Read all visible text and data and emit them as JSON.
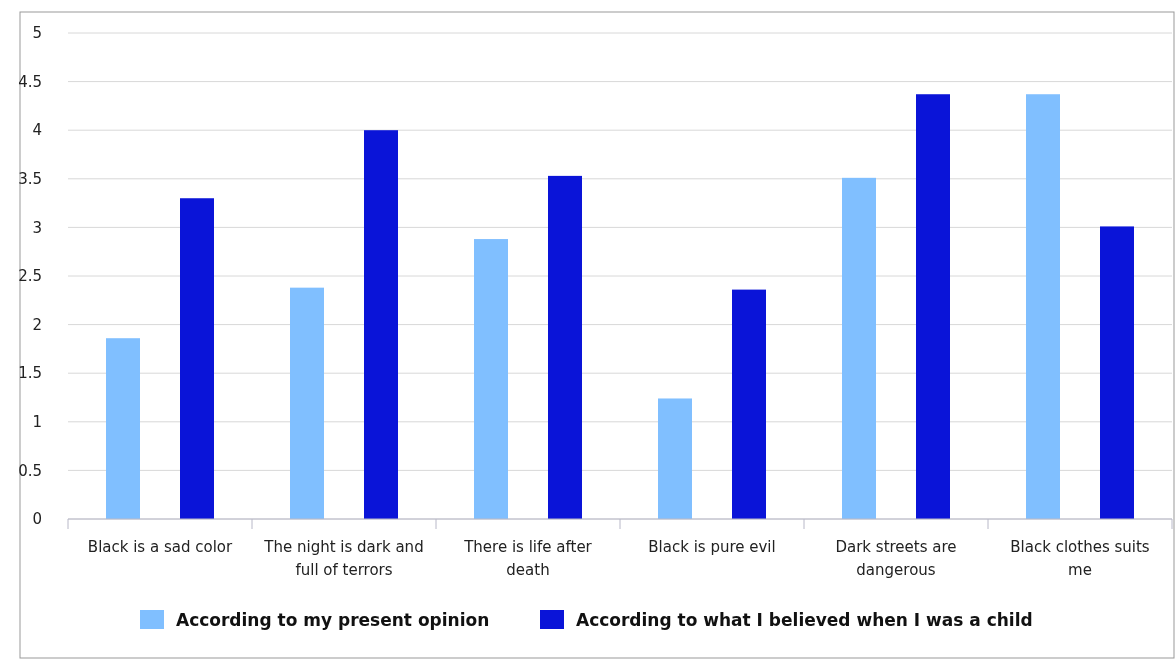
{
  "chart_data": {
    "type": "bar",
    "categories": [
      "Black is a sad color",
      "The night is dark and full of terrors",
      "There is life after death",
      "Black is pure evil",
      "Dark streets are dangerous",
      "Black clothes suits me"
    ],
    "series": [
      {
        "name": "According to my present opinion",
        "color": "#80bfff",
        "values": [
          1.86,
          2.38,
          2.88,
          1.24,
          3.51,
          4.37
        ]
      },
      {
        "name": "According to what I believed when I was a child",
        "color": "#0a14d8",
        "values": [
          3.3,
          4.0,
          3.53,
          2.36,
          4.37,
          3.01
        ]
      }
    ],
    "ylim": [
      0,
      5
    ],
    "yticks": [
      0,
      0.5,
      1,
      1.5,
      2,
      2.5,
      3,
      3.5,
      4,
      4.5,
      5
    ],
    "grid": "y",
    "legend": "bottom"
  }
}
